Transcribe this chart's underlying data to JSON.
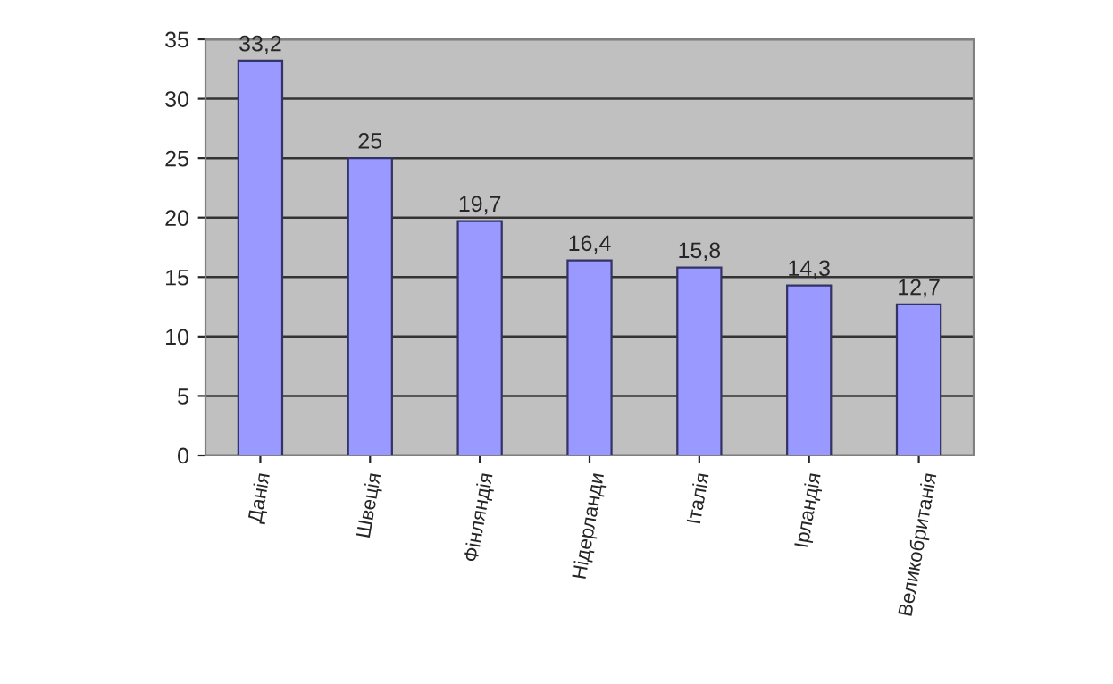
{
  "chart_data": {
    "type": "bar",
    "categories": [
      "Данія",
      "Швеція",
      "Фінляндія",
      "Нідерланди",
      "Італія",
      "Ірландія",
      "Великобританія"
    ],
    "values": [
      33.2,
      25,
      19.7,
      16.4,
      15.8,
      14.3,
      12.7
    ],
    "value_labels": [
      "33,2",
      "25",
      "19,7",
      "16,4",
      "15,8",
      "14,3",
      "12,7"
    ],
    "color": "#9999ff",
    "ylim": [
      0,
      35
    ],
    "yticks": [
      0,
      5,
      10,
      15,
      20,
      25,
      30,
      35
    ],
    "grid": "y"
  }
}
